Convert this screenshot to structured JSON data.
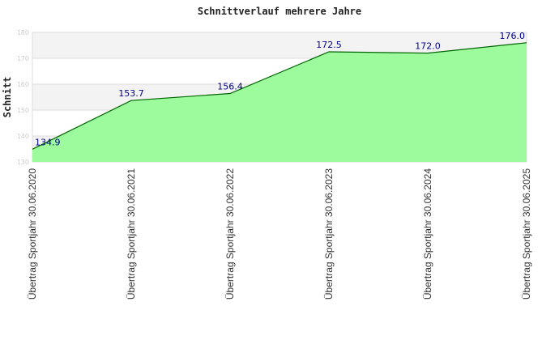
{
  "chart_data": {
    "type": "area",
    "title": "Schnittverlauf mehrere Jahre",
    "xlabel": "",
    "ylabel": "Schnitt",
    "ylim": [
      130,
      180
    ],
    "yticks": [
      130,
      140,
      150,
      160,
      170,
      180
    ],
    "categories": [
      "Übertrag Sportjahr 30.06.2020",
      "Übertrag Sportjahr 30.06.2021",
      "Übertrag Sportjahr 30.06.2022",
      "Übertrag Sportjahr 30.06.2023",
      "Übertrag Sportjahr 30.06.2024",
      "Übertrag Sportjahr 30.06.2025"
    ],
    "values": [
      134.9,
      153.7,
      156.4,
      172.5,
      172.0,
      176.0
    ],
    "value_labels": [
      "134.9",
      "153.7",
      "156.4",
      "172.5",
      "172.0",
      "176.0"
    ],
    "grid": true,
    "colors": {
      "fill": "#98fb98",
      "line": "#006400",
      "label": "#00008b"
    }
  }
}
